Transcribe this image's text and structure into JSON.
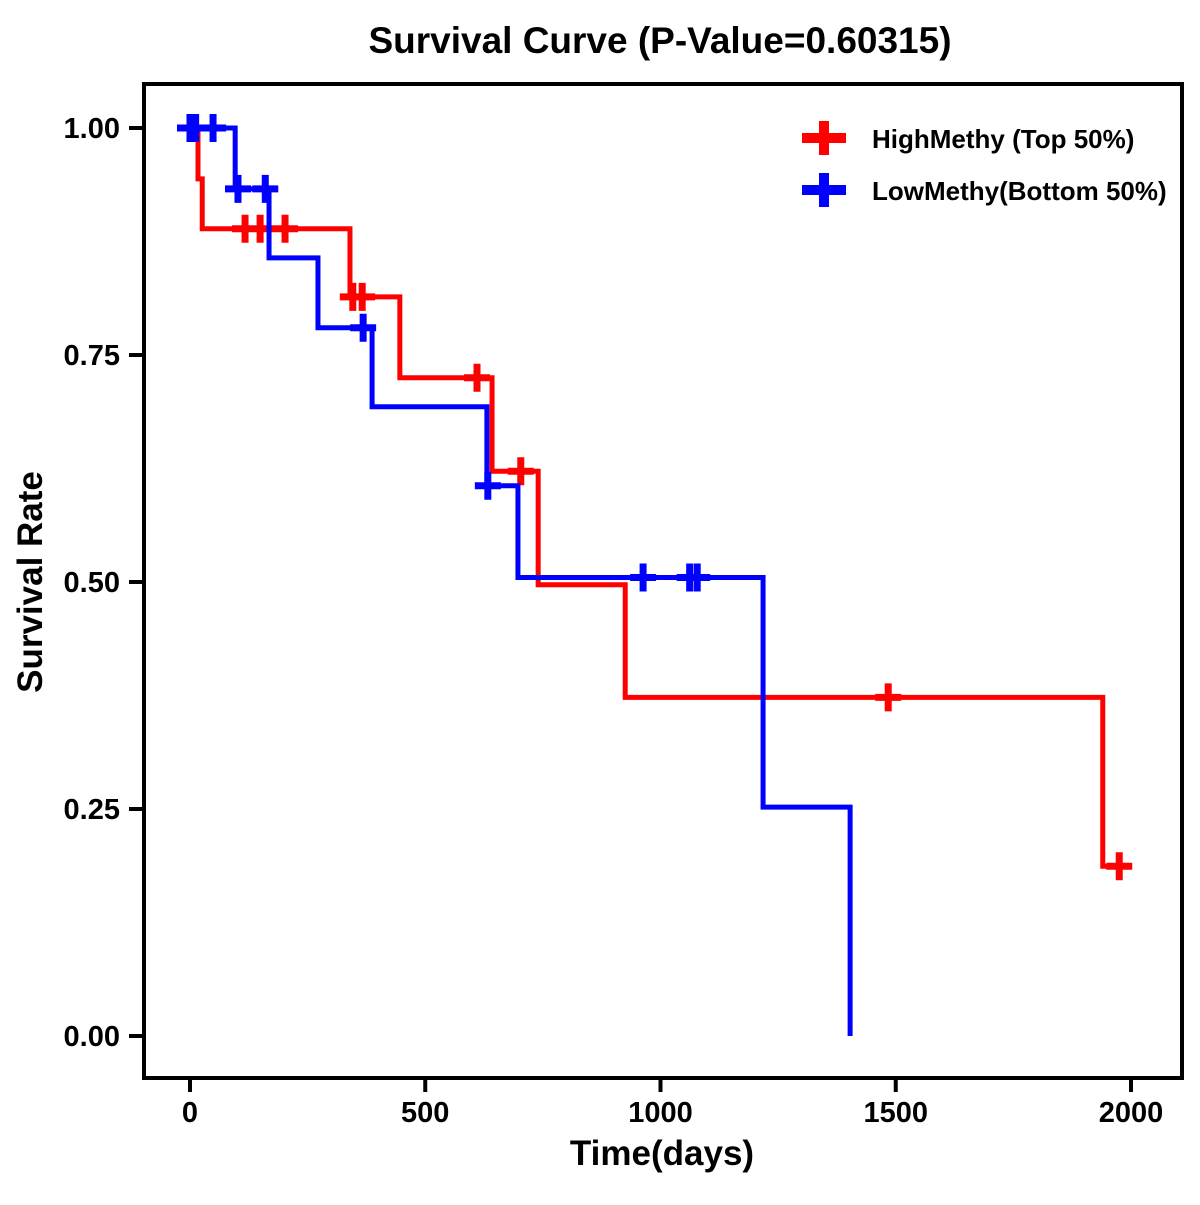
{
  "chart_data": {
    "type": "line",
    "subtype": "kaplan-meier-step-survival",
    "title": "Survival Curve (P-Value=0.60315)",
    "p_value": "0.60315",
    "xlabel": "Time(days)",
    "ylabel": "Survival Rate",
    "xlim": [
      0,
      2000
    ],
    "ylim": [
      0.0,
      1.0
    ],
    "grid": false,
    "legend_position": "top-right",
    "censor_marker": "plus",
    "x_ticks": {
      "values": [
        0,
        500,
        1000,
        1500,
        2000
      ],
      "labels": [
        "0",
        "500",
        "1000",
        "1500",
        "2000"
      ]
    },
    "y_ticks": {
      "values": [
        0.0,
        0.25,
        0.5,
        0.75,
        1.0
      ],
      "labels": [
        "0.00",
        "0.25",
        "0.50",
        "0.75",
        "1.00"
      ]
    },
    "series": [
      {
        "name": "HighMethy (Top 50%)",
        "color": "#FF0000",
        "steps": [
          [
            0,
            1.0
          ],
          [
            17,
            0.944
          ],
          [
            26,
            0.889
          ],
          [
            340,
            0.814
          ],
          [
            446,
            0.725
          ],
          [
            642,
            0.622
          ],
          [
            740,
            0.497
          ],
          [
            925,
            0.373
          ],
          [
            1940,
            0.187
          ]
        ],
        "end_time": 2000,
        "censors": [
          [
            117,
            0.889
          ],
          [
            149,
            0.889
          ],
          [
            202,
            0.889
          ],
          [
            346,
            0.814
          ],
          [
            366,
            0.814
          ],
          [
            610,
            0.725
          ],
          [
            703,
            0.622
          ],
          [
            1484,
            0.373
          ],
          [
            1975,
            0.187
          ]
        ]
      },
      {
        "name": "LowMethy(Bottom 50%)",
        "color": "#0000FF",
        "steps": [
          [
            0,
            1.0
          ],
          [
            96,
            0.933
          ],
          [
            168,
            0.857
          ],
          [
            272,
            0.78
          ],
          [
            387,
            0.693
          ],
          [
            631,
            0.606
          ],
          [
            697,
            0.505
          ],
          [
            1218,
            0.252
          ],
          [
            1403,
            0.0
          ]
        ],
        "end_time": 1403,
        "censors": [
          [
            0,
            1.0
          ],
          [
            12,
            1.0
          ],
          [
            49,
            1.0
          ],
          [
            102,
            0.933
          ],
          [
            160,
            0.933
          ],
          [
            368,
            0.78
          ],
          [
            633,
            0.606
          ],
          [
            963,
            0.505
          ],
          [
            1062,
            0.505
          ],
          [
            1078,
            0.505
          ]
        ]
      }
    ]
  }
}
